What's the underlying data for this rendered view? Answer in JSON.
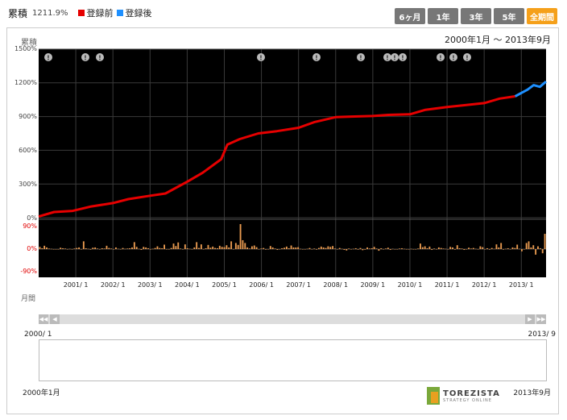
{
  "header": {
    "title": "累積",
    "cumulative_value": "1211.9%",
    "legend_before": {
      "label": "登録前",
      "color": "#e60000"
    },
    "legend_after": {
      "label": "登録後",
      "color": "#1e90ff"
    }
  },
  "tabs": [
    {
      "label": "6ヶ月",
      "active": false
    },
    {
      "label": "1年",
      "active": false
    },
    {
      "label": "3年",
      "active": false
    },
    {
      "label": "5年",
      "active": false
    },
    {
      "label": "全期間",
      "active": true
    }
  ],
  "date_range": "2000年1月 〜 2013年9月",
  "main_ylabel": "累積",
  "monthly_label": "月間",
  "navigator": {
    "start_label": "2000/ 1",
    "end_label": "2013/ 9",
    "footer_start": "2000年1月",
    "footer_end": "2013年9月"
  },
  "logo": {
    "name": "TOREZISTA",
    "sub": "STRATEGY ONLINE"
  },
  "chart_data": [
    {
      "type": "line",
      "title": "累積",
      "xlabel": "",
      "ylabel": "累積",
      "ylim": [
        0,
        1500
      ],
      "yticks": [
        "1500%",
        "1200%",
        "900%",
        "600%",
        "300%",
        "0%"
      ],
      "xticks": [
        "2001/ 1",
        "2002/ 1",
        "2003/ 1",
        "2004/ 1",
        "2005/ 1",
        "2006/ 1",
        "2007/ 1",
        "2008/ 1",
        "2009/ 1",
        "2010/ 1",
        "2011/ 1",
        "2012/ 1",
        "2013/ 1"
      ],
      "grid": true,
      "background": "#000000",
      "series": [
        {
          "name": "登録前",
          "color": "#e60000",
          "x": [
            "2000-01",
            "2000-06",
            "2000-12",
            "2001-06",
            "2002-01",
            "2002-06",
            "2003-01",
            "2003-06",
            "2004-01",
            "2004-06",
            "2004-12",
            "2005-02",
            "2005-06",
            "2005-12",
            "2006-06",
            "2007-01",
            "2007-06",
            "2008-01",
            "2008-06",
            "2009-01",
            "2009-06",
            "2010-01",
            "2010-06",
            "2011-01",
            "2011-06",
            "2012-01",
            "2012-06",
            "2012-11"
          ],
          "values": [
            10,
            50,
            60,
            100,
            130,
            165,
            195,
            215,
            320,
            400,
            520,
            650,
            700,
            750,
            770,
            800,
            850,
            895,
            900,
            905,
            915,
            920,
            960,
            985,
            1000,
            1020,
            1060,
            1080
          ]
        },
        {
          "name": "登録後",
          "color": "#1e90ff",
          "x": [
            "2012-11",
            "2013-01",
            "2013-03",
            "2013-05",
            "2013-07",
            "2013-09"
          ],
          "values": [
            1080,
            1110,
            1140,
            1180,
            1165,
            1212
          ]
        }
      ]
    },
    {
      "type": "bar",
      "title": "月間",
      "ylim": [
        -90,
        90
      ],
      "yticks": [
        "90%",
        "0%",
        "-90%"
      ],
      "color": "#e89a50",
      "values": [
        8,
        3,
        12,
        6,
        2,
        1,
        0,
        -1,
        0,
        5,
        3,
        2,
        0,
        1,
        0,
        2,
        4,
        6,
        0,
        28,
        3,
        1,
        -2,
        5,
        6,
        2,
        0,
        3,
        2,
        12,
        4,
        2,
        0,
        6,
        1,
        0,
        4,
        1,
        2,
        3,
        6,
        25,
        8,
        1,
        -3,
        8,
        6,
        3,
        0,
        1,
        4,
        10,
        4,
        3,
        16,
        0,
        0,
        4,
        20,
        11,
        24,
        2,
        0,
        17,
        3,
        1,
        0,
        6,
        25,
        4,
        17,
        0,
        3,
        15,
        5,
        9,
        4,
        3,
        12,
        8,
        7,
        14,
        6,
        28,
        0,
        22,
        15,
        90,
        32,
        22,
        6,
        2,
        10,
        13,
        7,
        0,
        2,
        4,
        -2,
        0,
        11,
        6,
        2,
        -3,
        -1,
        3,
        5,
        9,
        3,
        13,
        6,
        6,
        7,
        1,
        0,
        -1,
        1,
        4,
        0,
        2,
        -2,
        4,
        9,
        6,
        4,
        10,
        8,
        11,
        2,
        -1,
        4,
        1,
        -3,
        -5,
        2,
        0,
        1,
        3,
        -2,
        4,
        -4,
        -2,
        6,
        2,
        3,
        8,
        2,
        -6,
        3,
        -1,
        2,
        5,
        -3,
        1,
        0,
        -1,
        2,
        3,
        1,
        0,
        0,
        1,
        0,
        -1,
        2,
        20,
        7,
        10,
        3,
        9,
        -3,
        2,
        -1,
        6,
        4,
        2,
        1,
        0,
        8,
        6,
        -2,
        14,
        3,
        2,
        -3,
        0,
        5,
        2,
        4,
        1,
        0,
        10,
        7,
        -1,
        3,
        -2,
        4,
        1,
        17,
        6,
        22,
        -2,
        1,
        3,
        -1,
        6,
        4,
        16,
        1,
        -8,
        0,
        22,
        28,
        6,
        14,
        -20,
        10,
        3,
        -15,
        55
      ]
    }
  ]
}
